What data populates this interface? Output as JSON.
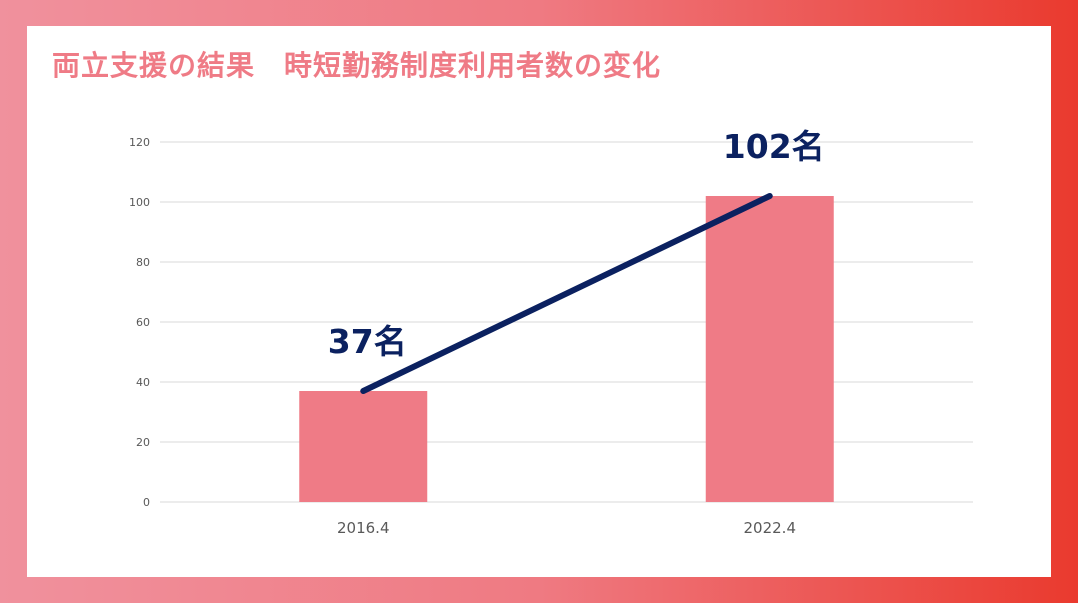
{
  "colors": {
    "bar": "#ef7b86",
    "trend_line": "#0b2160",
    "title": "#ef7b86",
    "grid": "#d9d9d9"
  },
  "chart_data": {
    "type": "bar",
    "title": "両立支援の結果　時短勤務制度利用者数の変化",
    "categories": [
      "2016.4",
      "2022.4"
    ],
    "values": [
      37,
      102
    ],
    "data_labels": [
      "37名",
      "102名"
    ],
    "ylim": [
      0,
      120
    ],
    "yticks": [
      0,
      20,
      40,
      60,
      80,
      100,
      120
    ],
    "xlabel": "",
    "ylabel": "",
    "grid": true,
    "legend": "none",
    "trend_line": true
  }
}
